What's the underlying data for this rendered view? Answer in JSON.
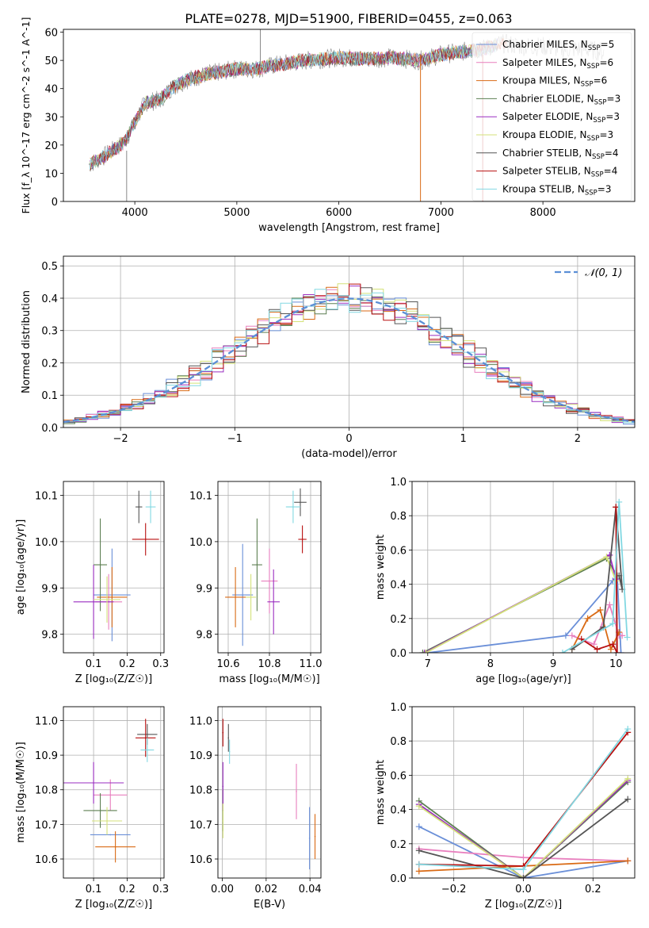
{
  "figure": {
    "title": "PLATE=0278, MJD=51900, FIBERID=0455, z=0.063"
  },
  "colors": {
    "series": [
      "#6a8fd8",
      "#e87fbe",
      "#d96a14",
      "#5d7f52",
      "#9a2ec0",
      "#d4e27a",
      "#555555",
      "#b80f0f",
      "#82d8e2"
    ],
    "normal": "#5b8fd6",
    "grid": "#b0b0b0"
  },
  "chart_data": [
    {
      "type": "line",
      "panel": "spectrum",
      "xlabel": "wavelength [Angstrom, rest frame]",
      "ylabel": "Flux [f_λ 10^-17 erg cm^-2 s^-1 A^-1]",
      "xlim": [
        3300,
        8900
      ],
      "ylim": [
        0,
        61
      ],
      "xticks": [
        4000,
        5000,
        6000,
        7000,
        8000
      ],
      "yticks": [
        0,
        10,
        20,
        30,
        40,
        50,
        60
      ],
      "grid": false,
      "legend_position": "top-right",
      "continuum": {
        "x": [
          3550,
          3700,
          3900,
          4000,
          4100,
          4250,
          4350,
          4500,
          4700,
          5000,
          5200,
          5400,
          5700,
          6000,
          6300,
          6500,
          6800,
          7000,
          7200,
          7400,
          7600,
          7800,
          8000,
          8200,
          8400,
          8600
        ],
        "y": [
          13,
          16,
          21,
          28,
          35,
          36,
          40,
          43,
          45,
          47,
          47,
          48.5,
          50,
          51,
          50.5,
          51,
          50,
          52,
          53,
          54,
          56,
          55,
          55,
          54,
          54,
          53
        ]
      },
      "series": [
        {
          "name": "Chabrier MILES, N_SSP=5",
          "name_main": "Chabrier MILES, N",
          "name_sub": "SSP",
          "name_tail": "=5"
        },
        {
          "name": "Salpeter MILES, N_SSP=6",
          "name_main": "Salpeter MILES, N",
          "name_sub": "SSP",
          "name_tail": "=6"
        },
        {
          "name": "Kroupa MILES, N_SSP=6",
          "name_main": "Kroupa MILES, N",
          "name_sub": "SSP",
          "name_tail": "=6"
        },
        {
          "name": "Chabrier ELODIE, N_SSP=3",
          "name_main": "Chabrier ELODIE, N",
          "name_sub": "SSP",
          "name_tail": "=3"
        },
        {
          "name": "Salpeter ELODIE, N_SSP=3",
          "name_main": "Salpeter ELODIE, N",
          "name_sub": "SSP",
          "name_tail": "=3"
        },
        {
          "name": "Kroupa ELODIE, N_SSP=3",
          "name_main": "Kroupa ELODIE, N",
          "name_sub": "SSP",
          "name_tail": "=3"
        },
        {
          "name": "Chabrier STELIB, N_SSP=4",
          "name_main": "Chabrier STELIB, N",
          "name_sub": "SSP",
          "name_tail": "=4"
        },
        {
          "name": "Salpeter STELIB, N_SSP=4",
          "name_main": "Salpeter STELIB, N",
          "name_sub": "SSP",
          "name_tail": "=4"
        },
        {
          "name": "Kroupa STELIB, N_SSP=3",
          "name_main": "Kroupa STELIB, N",
          "name_sub": "SSP",
          "name_tail": "=3"
        }
      ]
    },
    {
      "type": "line",
      "panel": "residuals",
      "xlabel": "(data-model)/error",
      "ylabel": "Normed distribution",
      "xlim": [
        -2.5,
        2.5
      ],
      "ylim": [
        0,
        0.53
      ],
      "xticks": [
        -2,
        -1,
        0,
        1,
        2
      ],
      "xtick_labels": [
        "−2",
        "−1",
        "0",
        "1",
        "2"
      ],
      "yticks": [
        0.0,
        0.1,
        0.2,
        0.3,
        0.4,
        0.5
      ],
      "ytick_labels": [
        "0.0",
        "0.1",
        "0.2",
        "0.3",
        "0.4",
        "0.5"
      ],
      "grid": true,
      "legend_position": "top-right",
      "normal_label": "𝒩(0, 1)",
      "bins": [
        -2.5,
        -2.4,
        -2.3,
        -2.2,
        -2.1,
        -2.0,
        -1.9,
        -1.8,
        -1.7,
        -1.6,
        -1.5,
        -1.4,
        -1.3,
        -1.2,
        -1.1,
        -1.0,
        -0.9,
        -0.8,
        -0.7,
        -0.6,
        -0.5,
        -0.4,
        -0.3,
        -0.2,
        -0.1,
        0.0,
        0.1,
        0.2,
        0.3,
        0.4,
        0.5,
        0.6,
        0.7,
        0.8,
        0.9,
        1.0,
        1.1,
        1.2,
        1.3,
        1.4,
        1.5,
        1.6,
        1.7,
        1.8,
        1.9,
        2.0,
        2.1,
        2.2,
        2.3,
        2.4
      ]
    },
    {
      "type": "scatter",
      "panel": "age_vs_Z",
      "xlabel": "Z [log₁₀(Z/Z☉)]",
      "ylabel": "age [log₁₀(age/yr)]",
      "xlim": [
        0.01,
        0.31
      ],
      "ylim": [
        9.76,
        10.13
      ],
      "xticks": [
        0.1,
        0.2,
        0.3
      ],
      "xtick_labels": [
        "0.1",
        "0.2",
        "0.3"
      ],
      "yticks": [
        9.8,
        9.9,
        10.0,
        10.1
      ],
      "ytick_labels": [
        "9.8",
        "9.9",
        "10.0",
        "10.1"
      ],
      "grid": true,
      "points": [
        {
          "x": 0.155,
          "xerr": 0.055,
          "y": 9.885,
          "yerr": 0.1
        },
        {
          "x": 0.145,
          "xerr": 0.04,
          "y": 9.87,
          "yerr": 0.06
        },
        {
          "x": 0.155,
          "xerr": 0.045,
          "y": 9.88,
          "yerr": 0.065
        },
        {
          "x": 0.12,
          "xerr": 0.02,
          "y": 9.95,
          "yerr": 0.1
        },
        {
          "x": 0.1,
          "xerr": 0.06,
          "y": 9.87,
          "yerr": 0.08
        },
        {
          "x": 0.14,
          "xerr": 0.04,
          "y": 9.875,
          "yerr": 0.05
        },
        {
          "x": 0.235,
          "xerr": 0.01,
          "y": 10.075,
          "yerr": 0.035
        },
        {
          "x": 0.255,
          "xerr": 0.04,
          "y": 10.005,
          "yerr": 0.035
        },
        {
          "x": 0.27,
          "xerr": 0.015,
          "y": 10.075,
          "yerr": 0.035
        }
      ]
    },
    {
      "type": "scatter",
      "panel": "age_vs_mass",
      "xlabel": "mass [log₁₀(M/M☉)]",
      "ylabel": "",
      "xlim": [
        10.55,
        11.05
      ],
      "ylim": [
        9.76,
        10.13
      ],
      "xticks": [
        10.6,
        10.8,
        11.0
      ],
      "xtick_labels": [
        "10.6",
        "10.8",
        "11.0"
      ],
      "yticks": [
        9.8,
        9.9,
        10.0,
        10.1
      ],
      "ytick_labels": [
        "9.8",
        "9.9",
        "10.0",
        "10.1"
      ],
      "grid": true,
      "points": [
        {
          "x": 10.67,
          "xerr": 0.05,
          "y": 9.885,
          "yerr": 0.11
        },
        {
          "x": 10.8,
          "xerr": 0.04,
          "y": 9.915,
          "yerr": 0.07
        },
        {
          "x": 10.635,
          "xerr": 0.05,
          "y": 9.88,
          "yerr": 0.065
        },
        {
          "x": 10.74,
          "xerr": 0.025,
          "y": 9.95,
          "yerr": 0.1
        },
        {
          "x": 10.82,
          "xerr": 0.03,
          "y": 9.87,
          "yerr": 0.07
        },
        {
          "x": 10.71,
          "xerr": 0.025,
          "y": 9.88,
          "yerr": 0.05
        },
        {
          "x": 10.95,
          "xerr": 0.03,
          "y": 10.085,
          "yerr": 0.03
        },
        {
          "x": 10.96,
          "xerr": 0.02,
          "y": 10.005,
          "yerr": 0.03
        },
        {
          "x": 10.915,
          "xerr": 0.035,
          "y": 10.075,
          "yerr": 0.035
        }
      ]
    },
    {
      "type": "line",
      "panel": "mass_weight_vs_age",
      "xlabel": "age [log₁₀(age/yr)]",
      "ylabel": "mass weight",
      "xlim": [
        6.75,
        10.3
      ],
      "ylim": [
        0,
        1.0
      ],
      "xticks": [
        7,
        8,
        9,
        10
      ],
      "xtick_labels": [
        "7",
        "8",
        "9",
        "10"
      ],
      "yticks": [
        0.0,
        0.2,
        0.4,
        0.6,
        0.8,
        1.0
      ],
      "ytick_labels": [
        "0.0",
        "0.2",
        "0.4",
        "0.6",
        "0.8",
        "1.0"
      ],
      "grid": true,
      "series": [
        {
          "x": [
            7.0,
            9.2,
            9.95,
            10.02,
            10.08
          ],
          "y": [
            0.0,
            0.1,
            0.42,
            0.45,
            0.0
          ]
        },
        {
          "x": [
            9.3,
            9.65,
            9.9,
            10.05,
            10.1
          ],
          "y": [
            0.1,
            0.05,
            0.28,
            0.1,
            0.1
          ]
        },
        {
          "x": [
            9.3,
            9.55,
            9.75,
            9.92,
            10.05
          ],
          "y": [
            0.02,
            0.2,
            0.25,
            0.02,
            0.12
          ]
        },
        {
          "x": [
            6.92,
            9.85,
            10.02
          ],
          "y": [
            0.0,
            0.55,
            0.45
          ]
        },
        {
          "x": [
            6.95,
            9.9,
            10.0
          ],
          "y": [
            0.0,
            0.57,
            0.43
          ]
        },
        {
          "x": [
            6.97,
            9.85,
            10.0
          ],
          "y": [
            0.0,
            0.56,
            0.42
          ]
        },
        {
          "x": [
            9.3,
            9.8,
            10.0,
            10.1,
            10.05
          ],
          "y": [
            0.02,
            0.15,
            0.85,
            0.37,
            0.45
          ]
        },
        {
          "x": [
            9.45,
            9.7,
            9.95,
            10.02,
            10.0
          ],
          "y": [
            0.08,
            0.02,
            0.05,
            0.0,
            0.85
          ]
        },
        {
          "x": [
            9.15,
            9.95,
            10.05,
            10.18
          ],
          "y": [
            0.0,
            0.17,
            0.88,
            0.09
          ]
        }
      ]
    },
    {
      "type": "scatter",
      "panel": "mass_vs_Z",
      "xlabel": "Z [log₁₀(Z/Z☉)]",
      "ylabel": "mass [log₁₀(M/M☉)]",
      "xlim": [
        0.01,
        0.31
      ],
      "ylim": [
        10.545,
        11.04
      ],
      "xticks": [
        0.1,
        0.2,
        0.3
      ],
      "xtick_labels": [
        "0.1",
        "0.2",
        "0.3"
      ],
      "yticks": [
        10.6,
        10.7,
        10.8,
        10.9,
        11.0
      ],
      "ytick_labels": [
        "10.6",
        "10.7",
        "10.8",
        "10.9",
        "11.0"
      ],
      "grid": true,
      "points": [
        {
          "x": 0.15,
          "xerr": 0.06,
          "y": 10.67,
          "yerr": 0.0
        },
        {
          "x": 0.15,
          "xerr": 0.05,
          "y": 10.785,
          "yerr": 0.045
        },
        {
          "x": 0.165,
          "xerr": 0.06,
          "y": 10.635,
          "yerr": 0.045
        },
        {
          "x": 0.12,
          "xerr": 0.05,
          "y": 10.74,
          "yerr": 0.05
        },
        {
          "x": 0.1,
          "xerr": 0.09,
          "y": 10.82,
          "yerr": 0.06
        },
        {
          "x": 0.14,
          "xerr": 0.045,
          "y": 10.71,
          "yerr": 0.04
        },
        {
          "x": 0.26,
          "xerr": 0.03,
          "y": 10.96,
          "yerr": 0.03
        },
        {
          "x": 0.255,
          "xerr": 0.03,
          "y": 10.95,
          "yerr": 0.055
        },
        {
          "x": 0.26,
          "xerr": 0.02,
          "y": 10.915,
          "yerr": 0.035
        }
      ]
    },
    {
      "type": "scatter",
      "panel": "mass_vs_EBV",
      "xlabel": "E(B-V)",
      "ylabel": "",
      "xlim": [
        -0.002,
        0.045
      ],
      "ylim": [
        10.545,
        11.04
      ],
      "xticks": [
        0.0,
        0.02,
        0.04
      ],
      "xtick_labels": [
        "0.00",
        "0.02",
        "0.04"
      ],
      "yticks": [
        10.6,
        10.7,
        10.8,
        10.9,
        11.0
      ],
      "ytick_labels": [
        "10.6",
        "10.7",
        "10.8",
        "10.9",
        "11.0"
      ],
      "grid": true,
      "points": [
        {
          "x": 0.0398,
          "y": 10.66,
          "yerr": 0.09
        },
        {
          "x": 0.0338,
          "y": 10.795,
          "yerr": 0.08
        },
        {
          "x": 0.0423,
          "y": 10.665,
          "yerr": 0.065
        },
        {
          "x": 0.0003,
          "y": 10.74,
          "yerr": 0.06
        },
        {
          "x": 0.0003,
          "y": 10.81,
          "yerr": 0.07
        },
        {
          "x": 0.0003,
          "y": 10.71,
          "yerr": 0.05
        },
        {
          "x": 0.0028,
          "y": 10.95,
          "yerr": 0.04
        },
        {
          "x": 0.0003,
          "y": 10.965,
          "yerr": 0.04
        },
        {
          "x": 0.0033,
          "y": 10.91,
          "yerr": 0.035
        }
      ]
    },
    {
      "type": "line",
      "panel": "mass_weight_vs_Z",
      "xlabel": "Z [log₁₀(Z/Z☉)]",
      "ylabel": "mass weight",
      "xlim": [
        -0.32,
        0.32
      ],
      "ylim": [
        0,
        1.0
      ],
      "xticks": [
        -0.2,
        0.0,
        0.2
      ],
      "xtick_labels": [
        "−0.2",
        "0.0",
        "0.2"
      ],
      "yticks": [
        0.0,
        0.2,
        0.4,
        0.6,
        0.8,
        1.0
      ],
      "ytick_labels": [
        "0.0",
        "0.2",
        "0.4",
        "0.6",
        "0.8",
        "1.0"
      ],
      "grid": true,
      "series": [
        {
          "x": [
            -0.3,
            0.0,
            0.3
          ],
          "y": [
            0.3,
            0.0,
            0.1
          ]
        },
        {
          "x": [
            -0.3,
            0.0,
            0.3
          ],
          "y": [
            0.17,
            0.12,
            0.1
          ]
        },
        {
          "x": [
            -0.3,
            0.0,
            0.3
          ],
          "y": [
            0.04,
            0.07,
            0.1
          ]
        },
        {
          "x": [
            -0.3,
            0.0,
            0.3
          ],
          "y": [
            0.45,
            0.0,
            0.56
          ]
        },
        {
          "x": [
            -0.3,
            0.0,
            0.3
          ],
          "y": [
            0.43,
            0.0,
            0.57
          ]
        },
        {
          "x": [
            -0.3,
            0.0,
            0.3
          ],
          "y": [
            0.42,
            0.0,
            0.58
          ]
        },
        {
          "x": [
            -0.3,
            0.0,
            0.3
          ],
          "y": [
            0.16,
            0.0,
            0.46
          ]
        },
        {
          "x": [
            -0.3,
            0.0,
            0.3
          ],
          "y": [
            0.08,
            0.07,
            0.85
          ]
        },
        {
          "x": [
            -0.3,
            0.0,
            0.3
          ],
          "y": [
            0.08,
            0.05,
            0.87
          ]
        }
      ]
    }
  ]
}
